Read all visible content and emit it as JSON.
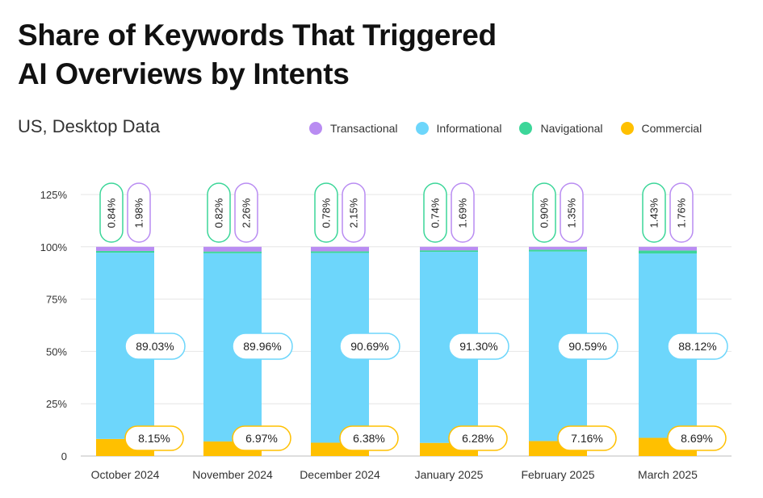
{
  "chart_data": {
    "type": "bar",
    "stacked": true,
    "title_lines": [
      "Share of Keywords That Triggered",
      "AI Overviews by Intents"
    ],
    "subtitle": "US, Desktop Data",
    "categories": [
      "October 2024",
      "November 2024",
      "December 2024",
      "January 2025",
      "February 2025",
      "March 2025"
    ],
    "series": [
      {
        "name": "Commercial",
        "key": "commercial",
        "color": "#FFC000",
        "values": [
          8.15,
          6.97,
          6.38,
          6.28,
          7.16,
          8.69
        ],
        "labels": [
          "8.15%",
          "6.97%",
          "6.38%",
          "6.28%",
          "7.16%",
          "8.69%"
        ]
      },
      {
        "name": "Informational",
        "key": "informational",
        "color": "#6DD6FB",
        "values": [
          89.03,
          89.96,
          90.69,
          91.3,
          90.59,
          88.12
        ],
        "labels": [
          "89.03%",
          "89.96%",
          "90.69%",
          "91.30%",
          "90.59%",
          "88.12%"
        ]
      },
      {
        "name": "Navigational",
        "key": "navigational",
        "color": "#3CD699",
        "values": [
          0.84,
          0.82,
          0.78,
          0.74,
          0.9,
          1.43
        ],
        "labels": [
          "0.84%",
          "0.82%",
          "0.78%",
          "0.74%",
          "0.90%",
          "1.43%"
        ]
      },
      {
        "name": "Transactional",
        "key": "transactional",
        "color": "#B98CF2",
        "values": [
          1.98,
          2.26,
          2.15,
          1.69,
          1.35,
          1.76
        ],
        "labels": [
          "1.98%",
          "2.26%",
          "2.15%",
          "1.69%",
          "1.35%",
          "1.76%"
        ]
      }
    ],
    "legend_order": [
      "Transactional",
      "Informational",
      "Navigational",
      "Commercial"
    ],
    "ylim": [
      0,
      125
    ],
    "yticks": [
      0,
      25,
      50,
      75,
      100,
      125
    ],
    "ytick_labels": [
      "0",
      "25%",
      "50%",
      "75%",
      "100%",
      "125%"
    ],
    "xlabel": "",
    "ylabel": "",
    "grid": true,
    "legend_position": "top-right"
  }
}
